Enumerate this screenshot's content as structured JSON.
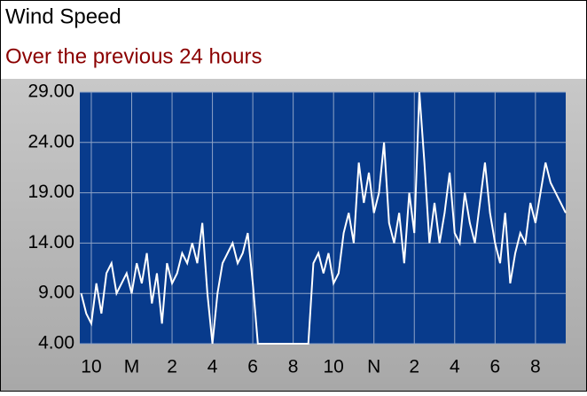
{
  "chart_data": {
    "type": "line",
    "title": "Wind Speed",
    "subtitle": "Over the previous 24  hours",
    "x": [
      21.5,
      21.75,
      22,
      22.25,
      22.5,
      22.75,
      23,
      23.25,
      23.5,
      23.75,
      24,
      24.25,
      24.5,
      24.75,
      25,
      25.25,
      25.5,
      25.75,
      26,
      26.25,
      26.5,
      26.75,
      27,
      27.25,
      27.5,
      27.75,
      28,
      28.25,
      28.5,
      28.75,
      29,
      29.25,
      29.5,
      29.75,
      30,
      30.25,
      30.5,
      30.75,
      31,
      31.25,
      31.5,
      31.75,
      32,
      32.25,
      32.5,
      32.75,
      33,
      33.25,
      33.5,
      33.75,
      34,
      34.25,
      34.5,
      34.75,
      35,
      35.25,
      35.5,
      35.75,
      36,
      36.25,
      36.5,
      36.75,
      37,
      37.25,
      37.5,
      37.75,
      38,
      38.25,
      38.5,
      38.75,
      39,
      39.25,
      39.5,
      39.75,
      40,
      40.25,
      40.5,
      40.75,
      41,
      41.25,
      41.5,
      41.75,
      42,
      42.25,
      42.5,
      42.75,
      43,
      43.25,
      43.5,
      43.75,
      44,
      44.25,
      44.5,
      44.75,
      45,
      45.25,
      45.5
    ],
    "series": [
      {
        "color": "#ffffff",
        "values": [
          9,
          7,
          6,
          10,
          7,
          11,
          12,
          9,
          10,
          11,
          9,
          12,
          10,
          13,
          8,
          11,
          6,
          12,
          10,
          11,
          13,
          12,
          14,
          12,
          16,
          9,
          4,
          9,
          12,
          13,
          14,
          12,
          13,
          15,
          10,
          4,
          4,
          4,
          4,
          4,
          4,
          4,
          4,
          4,
          4,
          4,
          12,
          13,
          11,
          13,
          10,
          11,
          15,
          17,
          14,
          22,
          18,
          21,
          17,
          19,
          24,
          16,
          14,
          17,
          12,
          19,
          15,
          29,
          22,
          14,
          18,
          14,
          17,
          21,
          15,
          14,
          19,
          16,
          14,
          18,
          22,
          17,
          14,
          12,
          17,
          10,
          13,
          15,
          14,
          18,
          16,
          19,
          22,
          20,
          19,
          18,
          17
        ]
      }
    ],
    "xlim": [
      21.43,
      45.5
    ],
    "xticks": [
      {
        "value": 22,
        "label": "10"
      },
      {
        "value": 24,
        "label": "M"
      },
      {
        "value": 26,
        "label": "2"
      },
      {
        "value": 28,
        "label": "4"
      },
      {
        "value": 30,
        "label": "6"
      },
      {
        "value": 32,
        "label": "8"
      },
      {
        "value": 34,
        "label": "10"
      },
      {
        "value": 36,
        "label": "N"
      },
      {
        "value": 38,
        "label": "2"
      },
      {
        "value": 40,
        "label": "4"
      },
      {
        "value": 42,
        "label": "6"
      },
      {
        "value": 44,
        "label": "8"
      }
    ],
    "ylim": [
      4,
      29
    ],
    "yticks": [
      {
        "value": 4,
        "label": "4.00"
      },
      {
        "value": 9,
        "label": "9.00"
      },
      {
        "value": 14,
        "label": "14.00"
      },
      {
        "value": 19,
        "label": "19.00"
      },
      {
        "value": 24,
        "label": "24.00"
      },
      {
        "value": 29,
        "label": "29.00"
      }
    ],
    "grid": true
  }
}
